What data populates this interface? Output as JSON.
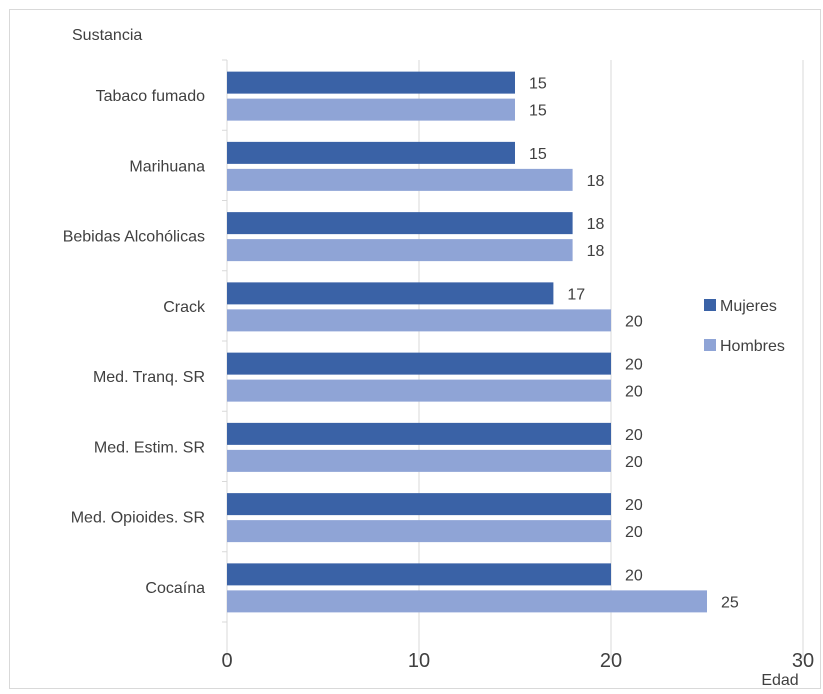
{
  "chart_data": {
    "type": "bar",
    "orientation": "horizontal",
    "categories": [
      "Tabaco fumado",
      "Marihuana",
      "Bebidas Alcohólicas",
      "Crack",
      "Med. Tranq. SR",
      "Med. Estim. SR",
      "Med. Opioides. SR",
      "Cocaína"
    ],
    "series": [
      {
        "name": "Mujeres",
        "color": "#3a62a6",
        "values": [
          15,
          15,
          18,
          17,
          20,
          20,
          20,
          20
        ]
      },
      {
        "name": "Hombres",
        "color": "#8fa4d6",
        "values": [
          15,
          18,
          18,
          20,
          20,
          20,
          20,
          25
        ]
      }
    ],
    "xlabel": "Edad",
    "ylabel": "Sustancia",
    "xlim": [
      0,
      30
    ],
    "xticks": [
      "0",
      "10",
      "20",
      "30"
    ],
    "grid": "vertical",
    "gridColor": "#d9d9d9",
    "legend": "right",
    "data_labels": true
  }
}
